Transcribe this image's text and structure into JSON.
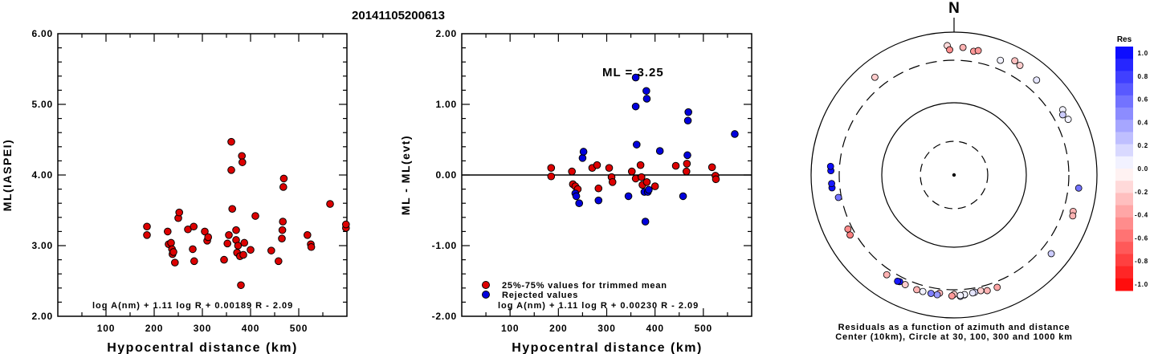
{
  "figure": {
    "title": "20141105200613"
  },
  "chart_data": [
    {
      "id": "panel1",
      "type": "scatter",
      "xlabel": "Hypocentral distance (km)",
      "ylabel": "ML(IASPEI)",
      "xlim": [
        0,
        600
      ],
      "ylim": [
        2.0,
        6.0
      ],
      "x_ticks": [
        100,
        200,
        300,
        400,
        500
      ],
      "y_ticks": [
        "2.00",
        "3.00",
        "4.00",
        "5.00",
        "6.00"
      ],
      "formula": "log A(nm) + 1.11 log R + 0.00189 R - 2.09",
      "marker_color": "#dd0000",
      "series": [
        {
          "points": [
            [
              185,
              3.27
            ],
            [
              185,
              3.15
            ],
            [
              228,
              3.2
            ],
            [
              230,
              3.02
            ],
            [
              235,
              3.04
            ],
            [
              237,
              2.95
            ],
            [
              238,
              2.88
            ],
            [
              240,
              2.91
            ],
            [
              243,
              2.76
            ],
            [
              250,
              3.39
            ],
            [
              252,
              3.47
            ],
            [
              270,
              3.23
            ],
            [
              280,
              2.95
            ],
            [
              282,
              3.27
            ],
            [
              283,
              2.78
            ],
            [
              305,
              3.2
            ],
            [
              310,
              3.07
            ],
            [
              312,
              3.12
            ],
            [
              345,
              2.8
            ],
            [
              352,
              3.03
            ],
            [
              355,
              3.15
            ],
            [
              360,
              4.07
            ],
            [
              360,
              4.47
            ],
            [
              362,
              3.52
            ],
            [
              370,
              3.22
            ],
            [
              370,
              3.08
            ],
            [
              372,
              2.9
            ],
            [
              374,
              3.0
            ],
            [
              378,
              2.85
            ],
            [
              380,
              2.44
            ],
            [
              382,
              4.27
            ],
            [
              383,
              4.18
            ],
            [
              385,
              2.87
            ],
            [
              387,
              3.04
            ],
            [
              400,
              2.94
            ],
            [
              410,
              3.42
            ],
            [
              443,
              2.93
            ],
            [
              458,
              2.78
            ],
            [
              465,
              3.1
            ],
            [
              466,
              3.22
            ],
            [
              467,
              3.34
            ],
            [
              468,
              3.83
            ],
            [
              469,
              3.95
            ],
            [
              518,
              3.15
            ],
            [
              525,
              3.02
            ],
            [
              526,
              2.98
            ],
            [
              565,
              3.59
            ],
            [
              598,
              3.25
            ],
            [
              598,
              3.3
            ]
          ]
        }
      ]
    },
    {
      "id": "panel2",
      "type": "scatter",
      "xlabel": "Hypocentral distance (km)",
      "ylabel": "ML - ML(evt)",
      "xlim": [
        0,
        600
      ],
      "ylim": [
        -2.0,
        2.0
      ],
      "x_ticks": [
        100,
        200,
        300,
        400,
        500
      ],
      "y_ticks": [
        "-2.00",
        "-1.00",
        "0.00",
        "1.00",
        "2.00"
      ],
      "annotation": "ML = 3.25",
      "formula": "log A(nm) + 1.11 log R + 0.00230 R - 2.09",
      "legend": {
        "placement": "bottom-left",
        "entries": [
          {
            "label": "25%-75% values for trimmed mean",
            "color": "#dd0000"
          },
          {
            "label": "Rejected values",
            "color": "#0000dd"
          }
        ]
      },
      "series": [
        {
          "name": "25%-75% values for trimmed mean",
          "color": "#dd0000",
          "points": [
            [
              185,
              0.1
            ],
            [
              185,
              -0.02
            ],
            [
              228,
              0.05
            ],
            [
              230,
              -0.13
            ],
            [
              235,
              -0.16
            ],
            [
              240,
              -0.2
            ],
            [
              270,
              0.1
            ],
            [
              280,
              0.14
            ],
            [
              283,
              -0.19
            ],
            [
              305,
              0.1
            ],
            [
              310,
              -0.03
            ],
            [
              312,
              -0.1
            ],
            [
              352,
              0.05
            ],
            [
              360,
              -0.05
            ],
            [
              370,
              0.14
            ],
            [
              372,
              -0.03
            ],
            [
              374,
              -0.14
            ],
            [
              383,
              -0.1
            ],
            [
              400,
              -0.16
            ],
            [
              443,
              0.13
            ],
            [
              465,
              0.05
            ],
            [
              466,
              0.16
            ],
            [
              518,
              0.11
            ],
            [
              525,
              -0.01
            ],
            [
              526,
              -0.06
            ]
          ]
        },
        {
          "name": "Rejected values",
          "color": "#0000dd",
          "points": [
            [
              235,
              -0.26
            ],
            [
              237,
              -0.3
            ],
            [
              243,
              -0.4
            ],
            [
              250,
              0.24
            ],
            [
              252,
              0.33
            ],
            [
              283,
              -0.36
            ],
            [
              345,
              -0.3
            ],
            [
              360,
              1.38
            ],
            [
              360,
              0.97
            ],
            [
              362,
              0.43
            ],
            [
              378,
              -0.24
            ],
            [
              380,
              -0.66
            ],
            [
              382,
              1.19
            ],
            [
              383,
              1.08
            ],
            [
              385,
              -0.24
            ],
            [
              387,
              -0.21
            ],
            [
              410,
              0.34
            ],
            [
              458,
              -0.3
            ],
            [
              467,
              0.28
            ],
            [
              468,
              0.77
            ],
            [
              469,
              0.89
            ],
            [
              565,
              0.58
            ]
          ]
        }
      ]
    },
    {
      "id": "panel3",
      "type": "scatter",
      "projection": "polar",
      "north_label": "N",
      "caption_line1": "Residuals as a function of azimuth and distance",
      "caption_line2": "Center (10km), Circle at 30, 100, 300 and 1000 km",
      "rings_km": [
        30,
        100,
        300,
        1000
      ],
      "colorbar": {
        "title": "Res",
        "range": [
          -1.0,
          1.0
        ],
        "tick_labels": [
          "1.0",
          "0.8",
          "0.6",
          "0.4",
          "0.2",
          "0.0",
          "-0.2",
          "-0.4",
          "-0.6",
          "-0.8",
          "-1.0"
        ],
        "positive_color": "#0000ff",
        "negative_color": "#ff0000"
      },
      "points_az_dist_res": [
        [
          357,
          565,
          -0.15
        ],
        [
          4,
          525,
          -0.3
        ],
        [
          358,
          470,
          -0.45
        ],
        [
          9,
          470,
          -0.4
        ],
        [
          11,
          500,
          -0.4
        ],
        [
          28,
          560,
          -0.25
        ],
        [
          31,
          525,
          -0.2
        ],
        [
          22,
          440,
          0.05
        ],
        [
          41,
          480,
          0.1
        ],
        [
          59,
          500,
          0.05
        ],
        [
          61,
          450,
          0.2
        ],
        [
          64,
          505,
          0.05
        ],
        [
          96,
          470,
          0.55
        ],
        [
          107,
          455,
          -0.3
        ],
        [
          109,
          475,
          -0.3
        ],
        [
          129,
          465,
          0.2
        ],
        [
          159,
          380,
          -0.35
        ],
        [
          164,
          380,
          -0.3
        ],
        [
          167,
          355,
          -0.2
        ],
        [
          170,
          360,
          0.15
        ],
        [
          171,
          365,
          0.1
        ],
        [
          175,
          380,
          0.3
        ],
        [
          177,
          400,
          0.3
        ],
        [
          175,
          375,
          0.05
        ],
        [
          177,
          385,
          0.05
        ],
        [
          180,
          365,
          -0.2
        ],
        [
          181,
          390,
          -0.4
        ],
        [
          187,
          360,
          -0.3
        ],
        [
          188,
          390,
          0.4
        ],
        [
          191,
          385,
          0.5
        ],
        [
          195,
          385,
          0.05
        ],
        [
          198,
          385,
          -0.3
        ],
        [
          204,
          375,
          -0.2
        ],
        [
          207,
          370,
          0.9
        ],
        [
          208,
          380,
          0.9
        ],
        [
          214,
          380,
          -0.3
        ],
        [
          240,
          375,
          -0.5
        ],
        [
          243,
          360,
          -0.45
        ],
        [
          259,
          340,
          0.55
        ],
        [
          264,
          420,
          0.95
        ],
        [
          266,
          420,
          0.9
        ],
        [
          272,
          430,
          0.95
        ],
        [
          274,
          440,
          0.95
        ],
        [
          321,
          480,
          -0.2
        ]
      ]
    }
  ]
}
